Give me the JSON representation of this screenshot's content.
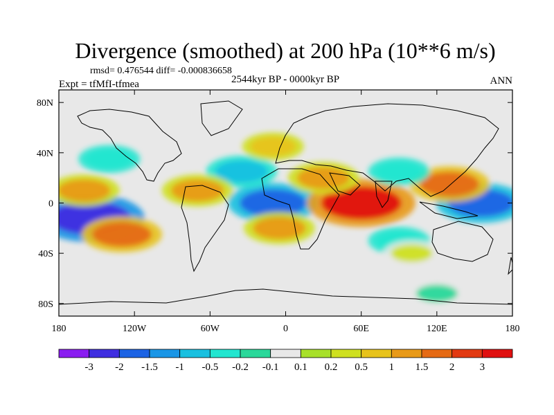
{
  "chart_data": {
    "type": "heatmap",
    "title": "Divergence (smoothed) at 200 hPa (10**6 m/s)",
    "stats_line": "rmsd= 0.476544 diff= -0.000836658",
    "experiment": "Expt = tfMfI-tfmea",
    "period": "2544kyr BP - 0000kyr BP",
    "season": "ANN",
    "x_ticks": [
      "180",
      "120W",
      "60W",
      "0",
      "60E",
      "120E",
      "180"
    ],
    "y_ticks": [
      "80N",
      "40N",
      "0",
      "40S",
      "80S"
    ],
    "x_tick_values": [
      -180,
      -120,
      -60,
      0,
      60,
      120,
      180
    ],
    "y_tick_values": [
      80,
      40,
      0,
      -40,
      -80
    ],
    "xlim": [
      -180,
      180
    ],
    "ylim": [
      -90,
      90
    ],
    "colorbar": {
      "labels": [
        "-3",
        "-2",
        "-1.5",
        "-1",
        "-0.5",
        "-0.2",
        "-0.1",
        "0.1",
        "0.2",
        "0.5",
        "1",
        "1.5",
        "2",
        "3"
      ],
      "colors": [
        "#8a1df0",
        "#3f2ee0",
        "#1c63e4",
        "#1a96e6",
        "#19c0e0",
        "#22e6d0",
        "#2ad89a",
        "#e8e8e8",
        "#a8e02a",
        "#cfe020",
        "#e7c31c",
        "#e89a18",
        "#e56a14",
        "#e23a12",
        "#e01010"
      ]
    },
    "features": [
      {
        "name": "tropical east pacific negative core",
        "lon": -155,
        "lat": -12,
        "value": -3
      },
      {
        "name": "atlantic equatorial negative",
        "lon": -10,
        "lat": 0,
        "value": -2
      },
      {
        "name": "west pacific negative",
        "lon": 155,
        "lat": 0,
        "value": -2
      },
      {
        "name": "indian ocean positive core",
        "lon": 60,
        "lat": 0,
        "value": 3
      },
      {
        "name": "south pacific positive band",
        "lon": -130,
        "lat": -25,
        "value": 1.5
      },
      {
        "name": "south atlantic positive",
        "lon": -5,
        "lat": -20,
        "value": 1
      },
      {
        "name": "north pacific positive",
        "lon": 130,
        "lat": 15,
        "value": 1.5
      },
      {
        "name": "central pacific positive",
        "lon": -160,
        "lat": 10,
        "value": 1
      },
      {
        "name": "north atlantic negative",
        "lon": -35,
        "lat": 25,
        "value": -1
      },
      {
        "name": "east pacific positive",
        "lon": -70,
        "lat": 10,
        "value": 1
      },
      {
        "name": "north atlantic subpolar positive",
        "lon": -10,
        "lat": 45,
        "value": 0.5
      },
      {
        "name": "arabia positive",
        "lon": 30,
        "lat": 20,
        "value": 1
      },
      {
        "name": "tibet negative",
        "lon": 90,
        "lat": 25,
        "value": -0.5
      },
      {
        "name": "southern indian negative",
        "lon": 90,
        "lat": -30,
        "value": -0.5
      },
      {
        "name": "southern ocean positive",
        "lon": 100,
        "lat": -40,
        "value": 0.2
      },
      {
        "name": "north pacific midlat negative",
        "lon": -140,
        "lat": 35,
        "value": -0.5
      },
      {
        "name": "antarctic coast patch",
        "lon": 120,
        "lat": -72,
        "value": -0.2
      }
    ]
  }
}
